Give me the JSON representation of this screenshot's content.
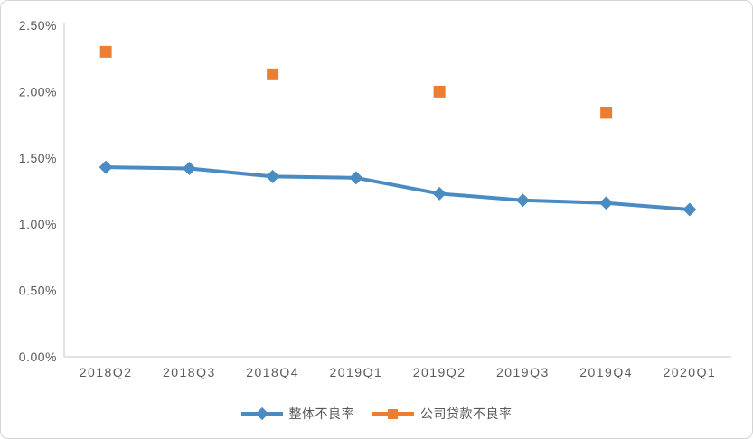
{
  "chart_data": {
    "type": "line",
    "title": "",
    "units": "percent",
    "categories": [
      "2018Q2",
      "2018Q3",
      "2018Q4",
      "2019Q1",
      "2019Q2",
      "2019Q3",
      "2019Q4",
      "2020Q1"
    ],
    "series": [
      {
        "name": "整体不良率",
        "color": "#4A8BC2",
        "marker": "diamond",
        "show_line": true,
        "values": [
          1.43,
          1.42,
          1.36,
          1.35,
          1.23,
          1.18,
          1.16,
          1.11
        ]
      },
      {
        "name": "公司贷款不良率",
        "color": "#ED7D31",
        "marker": "square",
        "show_line": false,
        "values": [
          2.3,
          null,
          2.13,
          null,
          2.0,
          null,
          1.84,
          null
        ]
      }
    ],
    "y_axis": {
      "min": 0,
      "max": 2.5,
      "step": 0.5,
      "tick_labels": [
        "0.00%",
        "0.50%",
        "1.00%",
        "1.50%",
        "2.00%",
        "2.50%"
      ]
    },
    "grid": false,
    "legend_position": "bottom"
  },
  "colors": {
    "axis_line": "#D9D9D9",
    "tick_text": "#595959",
    "legend_text": "#595959",
    "background": "#FFFFFF",
    "card_border": "#D4D4D4"
  }
}
